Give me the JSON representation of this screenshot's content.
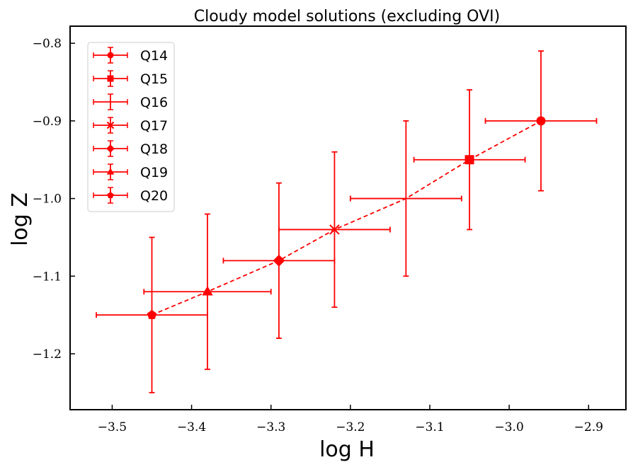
{
  "chart_data": {
    "type": "scatter",
    "title": "Cloudy model solutions (excluding OVI)",
    "xlabel": "log H",
    "ylabel": "log Z",
    "xlim": [
      -3.553,
      -2.853
    ],
    "ylim": [
      -1.272,
      -0.778
    ],
    "xticks": [
      -3.5,
      -3.4,
      -3.3,
      -3.2,
      -3.1,
      -3.0,
      -2.9
    ],
    "xtick_labels": [
      "−3.5",
      "−3.4",
      "−3.3",
      "−3.2",
      "−3.1",
      "−3.0",
      "−2.9"
    ],
    "yticks": [
      -1.2,
      -1.1,
      -1.0,
      -0.9,
      -0.8
    ],
    "ytick_labels": [
      "−1.2",
      "−1.1",
      "−1.0",
      "−0.9",
      "−0.8"
    ],
    "grid": false,
    "legend_position": "top-left",
    "color": "#ff0000",
    "connecting_line": "dashed",
    "series": [
      {
        "name": "Q14",
        "marker": "circle",
        "x": -2.96,
        "y": -0.9,
        "xerr": 0.07,
        "yerr": 0.09
      },
      {
        "name": "Q15",
        "marker": "square",
        "x": -3.05,
        "y": -0.95,
        "xerr": 0.07,
        "yerr": 0.09
      },
      {
        "name": "Q16",
        "marker": "none",
        "x": -3.13,
        "y": -1.0,
        "xerr": 0.07,
        "yerr": 0.1
      },
      {
        "name": "Q17",
        "marker": "x",
        "x": -3.22,
        "y": -1.04,
        "xerr": 0.07,
        "yerr": 0.1
      },
      {
        "name": "Q18",
        "marker": "diamond",
        "x": -3.29,
        "y": -1.08,
        "xerr": 0.07,
        "yerr": 0.1
      },
      {
        "name": "Q19",
        "marker": "triangle",
        "x": -3.38,
        "y": -1.12,
        "xerr": 0.08,
        "yerr": 0.1
      },
      {
        "name": "Q20",
        "marker": "pentagon",
        "x": -3.45,
        "y": -1.15,
        "xerr": 0.07,
        "yerr": 0.1
      }
    ]
  }
}
